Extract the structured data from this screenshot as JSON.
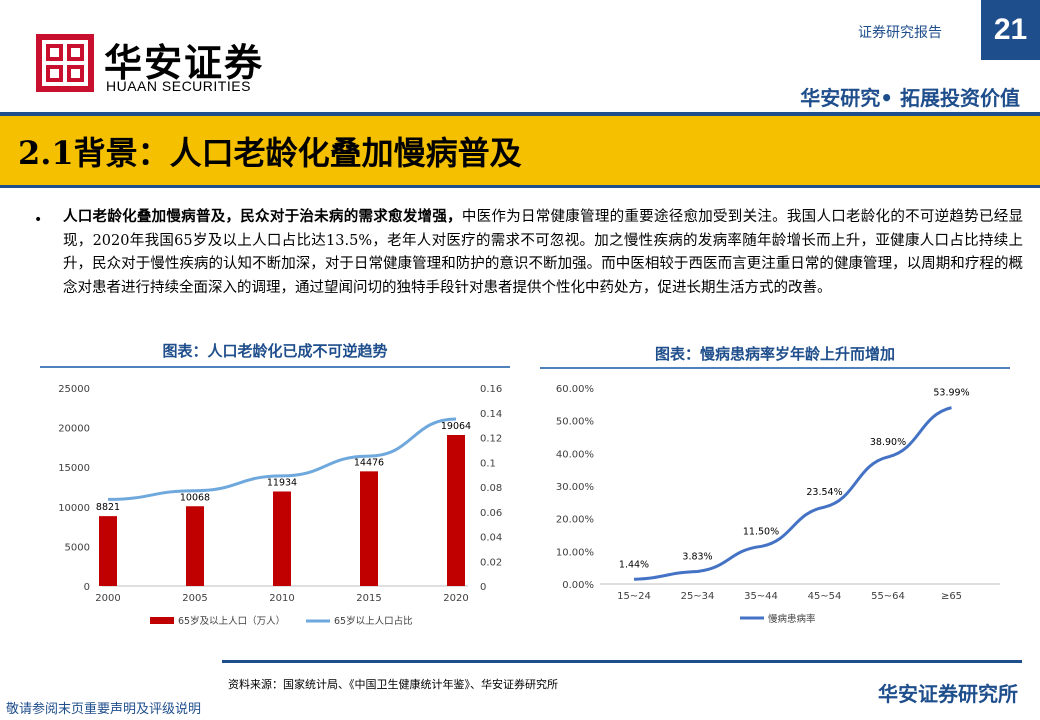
{
  "header": {
    "brand_cn": "华安证券",
    "brand_en": "HUAAN SECURITIES",
    "report_type": "证券研究报告",
    "page_number": "21",
    "tagline": "华安研究• 拓展投资价值",
    "colors": {
      "navy": "#1f4e8c",
      "logo_red": "#c8102e",
      "title_bar": "#f5c000"
    }
  },
  "section": {
    "title": "2.1背景：人口老龄化叠加慢病普及"
  },
  "body": {
    "bullet": "•",
    "bold_lead": "人口老龄化叠加慢病普及，民众对于治未病的需求愈发增强，",
    "text": "中医作为日常健康管理的重要途径愈加受到关注。我国人口老龄化的不可逆趋势已经显现，2020年我国65岁及以上人口占比达13.5%，老年人对医疗的需求不可忽视。加之慢性疾病的发病率随年龄增长而上升，亚健康人口占比持续上升，民众对于慢性疾病的认知不断加深，对于日常健康管理和防护的意识不断加强。而中医相较于西医而言更注重日常的健康管理，以周期和疗程的概念对患者进行持续全面深入的调理，通过望闻问切的独特手段针对患者提供个性化中药处方，促进长期生活方式的改善。"
  },
  "charts": {
    "title_1": "图表：人口老龄化已成不可逆趋势",
    "title_2": "图表：慢病患病率岁年龄上升而增加"
  },
  "chart_data": [
    {
      "type": "bar",
      "categories": [
        "2000",
        "2005",
        "2010",
        "2015",
        "2020"
      ],
      "series": [
        {
          "name": "65岁及以上人口（万人）",
          "type": "bar",
          "axis": "left",
          "color": "#c00000",
          "values": [
            8821,
            10068,
            11934,
            14476,
            19064
          ],
          "labels": [
            "8821",
            "10068",
            "11934",
            "14476",
            "19064"
          ]
        },
        {
          "name": "65岁以上人口占比",
          "type": "line",
          "axis": "right",
          "color": "#6fa8dc",
          "values": [
            0.07,
            0.077,
            0.089,
            0.105,
            0.135
          ]
        }
      ],
      "y_left": {
        "min": 0,
        "max": 25000,
        "ticks": [
          "0",
          "5000",
          "10000",
          "15000",
          "20000",
          "25000"
        ]
      },
      "y_right": {
        "min": 0,
        "max": 0.16,
        "ticks": [
          "0",
          "0.02",
          "0.04",
          "0.06",
          "0.08",
          "0.1",
          "0.12",
          "0.14",
          "0.16"
        ]
      },
      "legend": "bottom"
    },
    {
      "type": "line",
      "categories": [
        "15~24",
        "25~34",
        "35~44",
        "45~54",
        "55~64",
        "≥65"
      ],
      "series": [
        {
          "name": "慢病患病率",
          "color": "#4472c4",
          "values": [
            1.44,
            3.83,
            11.5,
            23.54,
            38.9,
            53.99
          ],
          "labels": [
            "1.44%",
            "3.83%",
            "11.50%",
            "23.54%",
            "38.90%",
            "53.99%"
          ]
        }
      ],
      "y": {
        "min": 0,
        "max": 60,
        "ticks": [
          "0.00%",
          "10.00%",
          "20.00%",
          "30.00%",
          "40.00%",
          "50.00%",
          "60.00%"
        ]
      },
      "legend": "bottom"
    }
  ],
  "footer": {
    "source": "资料来源：国家统计局、《中国卫生健康统计年鉴》、华安证券研究所",
    "disclaimer": "敬请参阅末页重要声明及评级说明",
    "brand": "华安证券研究所"
  }
}
